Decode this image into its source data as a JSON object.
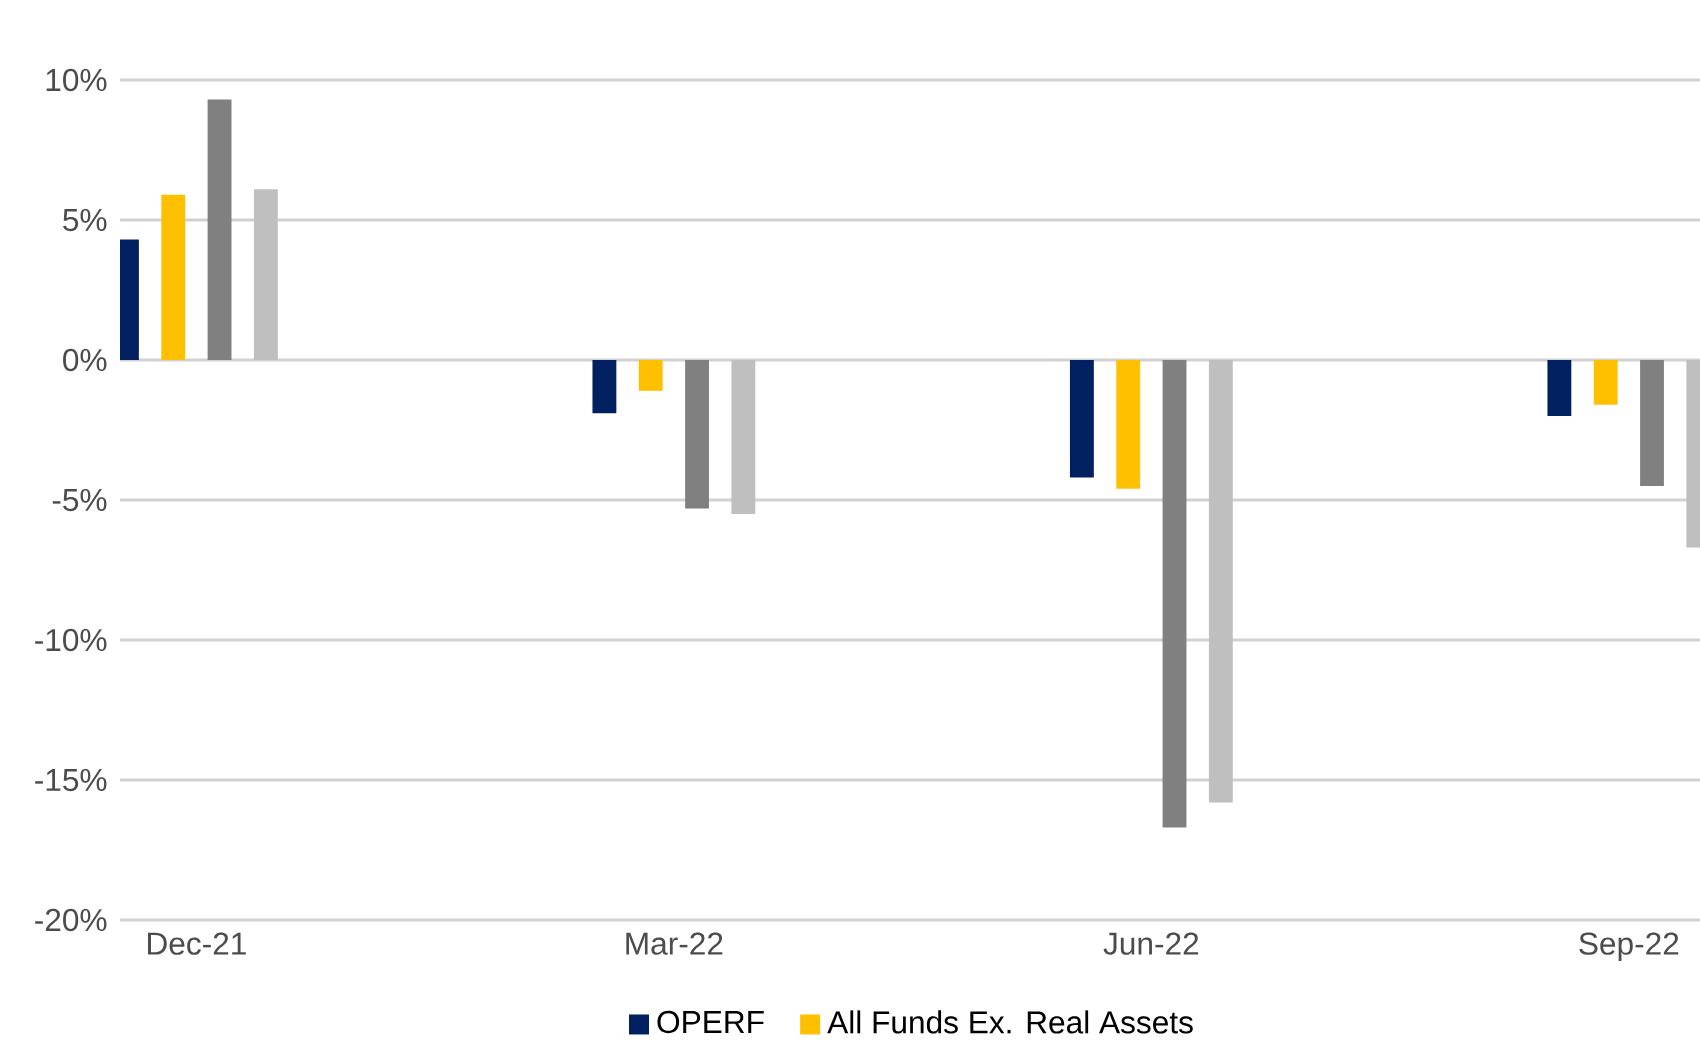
{
  "chart_data": {
    "type": "bar",
    "categories": [
      "Dec-21",
      "Mar-22",
      "Jun-22",
      "Sep-22"
    ],
    "series": [
      {
        "name": "OPERF",
        "color": "#002060",
        "values": [
          4.3,
          -1.9,
          -4.2,
          -2.0
        ]
      },
      {
        "name": "All Funds Ex. Real Assets",
        "color": "#ffc000",
        "values": [
          5.9,
          -1.1,
          -4.6,
          -1.6
        ]
      },
      {
        "color": "#808080",
        "values": [
          9.3,
          -5.3,
          -16.7,
          -4.5
        ]
      },
      {
        "color": "#bfbfbf",
        "values": [
          6.1,
          -5.5,
          -15.8,
          -6.7
        ]
      }
    ],
    "ylim": [
      -20,
      10
    ],
    "yticks": [
      {
        "value": -20,
        "label": "-20%"
      },
      {
        "value": -15,
        "label": "-15%"
      },
      {
        "value": -10,
        "label": "-10%"
      },
      {
        "value": -5,
        "label": "-5%"
      },
      {
        "value": 0,
        "label": "0%"
      },
      {
        "value": 5,
        "label": "5%"
      },
      {
        "value": 10,
        "label": "10%"
      }
    ],
    "grid": "y",
    "legend": "bottom"
  }
}
